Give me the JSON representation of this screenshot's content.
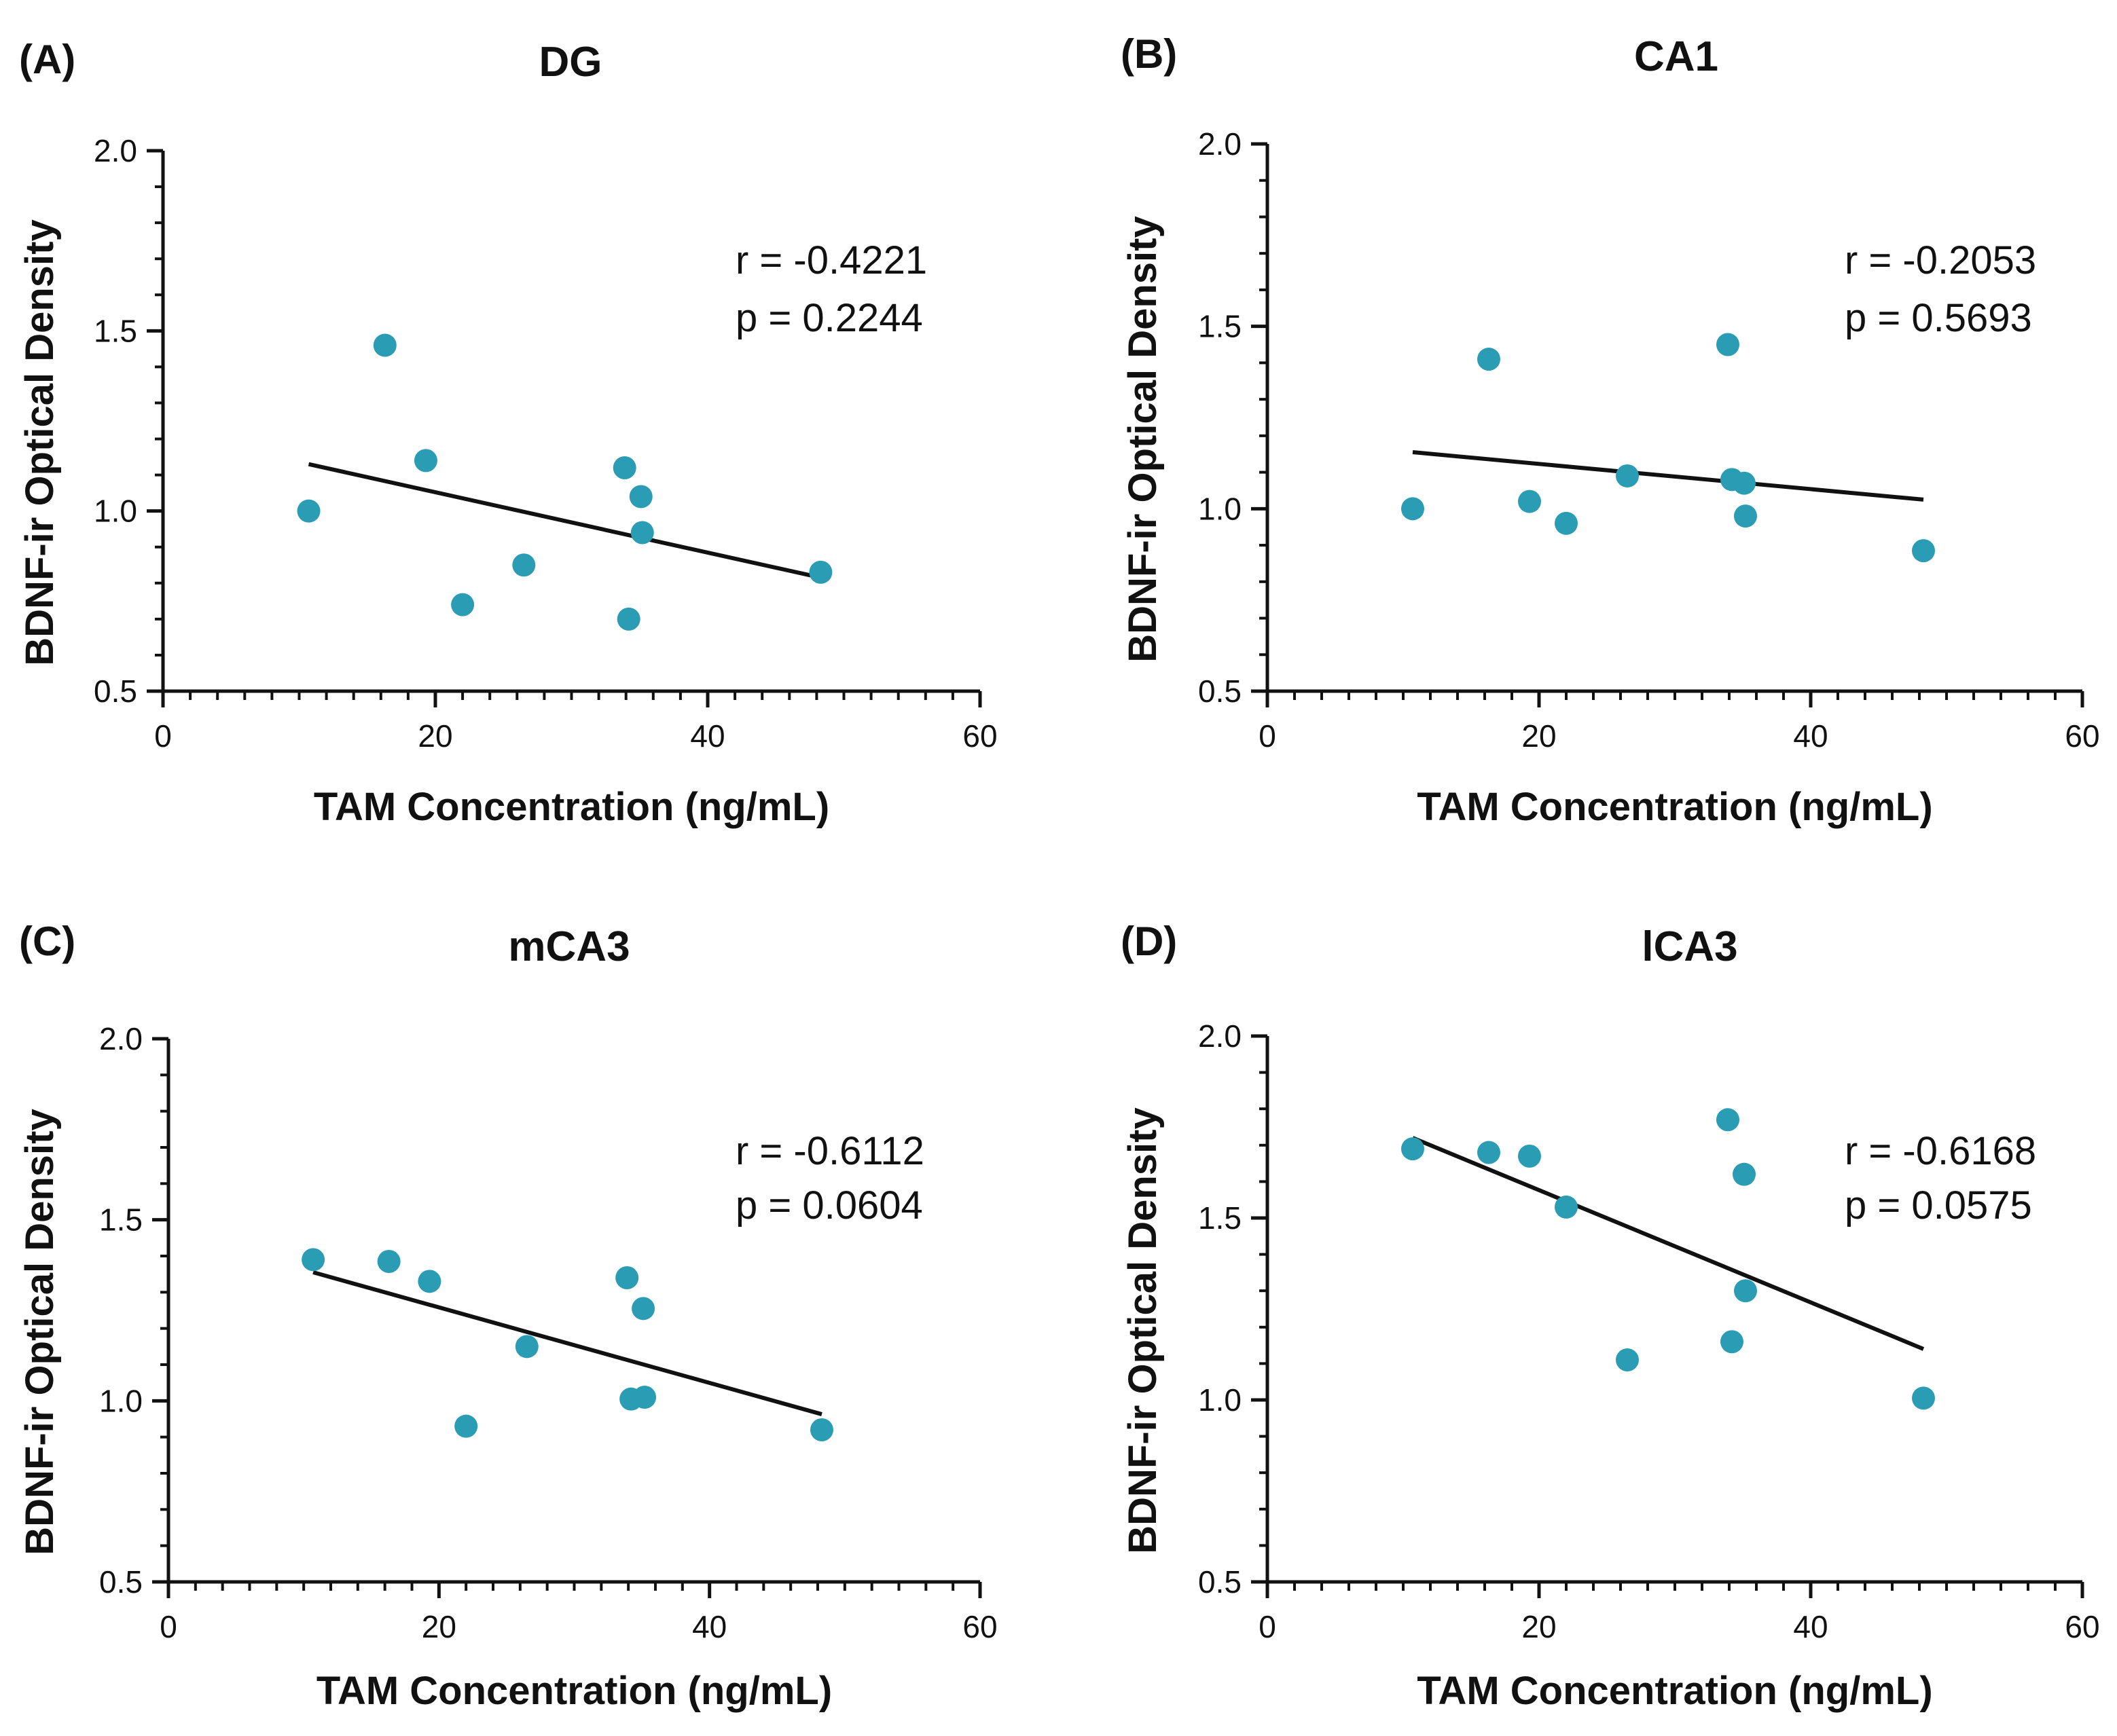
{
  "chart_data": [
    {
      "type": "scatter",
      "panel_label": "(A)",
      "title": "DG",
      "xlabel": "TAM Concentration (ng/mL)",
      "ylabel": "BDNF-ir Optical Density",
      "xlim": [
        0,
        60
      ],
      "ylim": [
        0.5,
        2.0
      ],
      "xticks": [
        "0",
        "20",
        "40",
        "60"
      ],
      "yticks": [
        "0.5",
        "1.0",
        "1.5",
        "2.0"
      ],
      "points": [
        {
          "x": 10.7,
          "y": 1.0
        },
        {
          "x": 16.3,
          "y": 1.46
        },
        {
          "x": 19.3,
          "y": 1.14
        },
        {
          "x": 22.0,
          "y": 0.74
        },
        {
          "x": 26.5,
          "y": 0.85
        },
        {
          "x": 33.9,
          "y": 1.12
        },
        {
          "x": 34.2,
          "y": 0.7
        },
        {
          "x": 35.1,
          "y": 1.04
        },
        {
          "x": 35.2,
          "y": 0.94
        },
        {
          "x": 48.3,
          "y": 0.83
        }
      ],
      "fit_line": {
        "x": [
          10.7,
          48.3
        ],
        "y": [
          1.13,
          0.815
        ]
      },
      "r_text": "r = -0.4221",
      "p_text": "p = 0.2244",
      "marker_color": "#2a9db5"
    },
    {
      "type": "scatter",
      "panel_label": "(B)",
      "title": "CA1",
      "xlabel": "TAM Concentration (ng/mL)",
      "ylabel": "BDNF-ir Optical Density",
      "xlim": [
        0,
        60
      ],
      "ylim": [
        0.5,
        2.0
      ],
      "xticks": [
        "0",
        "20",
        "40",
        "60"
      ],
      "yticks": [
        "0.5",
        "1.0",
        "1.5",
        "2.0"
      ],
      "points": [
        {
          "x": 10.7,
          "y": 1.0
        },
        {
          "x": 16.3,
          "y": 1.41
        },
        {
          "x": 19.3,
          "y": 1.02
        },
        {
          "x": 22.0,
          "y": 0.96
        },
        {
          "x": 26.5,
          "y": 1.09
        },
        {
          "x": 33.9,
          "y": 1.45
        },
        {
          "x": 34.2,
          "y": 1.08
        },
        {
          "x": 35.1,
          "y": 1.07
        },
        {
          "x": 35.2,
          "y": 0.98
        },
        {
          "x": 48.3,
          "y": 0.885
        }
      ],
      "fit_line": {
        "x": [
          10.7,
          48.3
        ],
        "y": [
          1.155,
          1.025
        ]
      },
      "r_text": "r = -0.2053",
      "p_text": "p = 0.5693",
      "marker_color": "#2a9db5"
    },
    {
      "type": "scatter",
      "panel_label": "(C)",
      "title": "mCA3",
      "xlabel": "TAM Concentration (ng/mL)",
      "ylabel": "BDNF-ir Optical Density",
      "xlim": [
        0,
        60
      ],
      "ylim": [
        0.5,
        2.0
      ],
      "xticks": [
        "0",
        "20",
        "40",
        "60"
      ],
      "yticks": [
        "0.5",
        "1.0",
        "1.5",
        "2.0"
      ],
      "points": [
        {
          "x": 10.7,
          "y": 1.39
        },
        {
          "x": 16.3,
          "y": 1.385
        },
        {
          "x": 19.3,
          "y": 1.33
        },
        {
          "x": 22.0,
          "y": 0.93
        },
        {
          "x": 26.5,
          "y": 1.15
        },
        {
          "x": 33.9,
          "y": 1.34
        },
        {
          "x": 34.2,
          "y": 1.005
        },
        {
          "x": 35.1,
          "y": 1.255
        },
        {
          "x": 35.2,
          "y": 1.01
        },
        {
          "x": 48.3,
          "y": 0.92
        }
      ],
      "fit_line": {
        "x": [
          10.7,
          48.3
        ],
        "y": [
          1.355,
          0.963
        ]
      },
      "r_text": "r = -0.6112",
      "p_text": "p = 0.0604",
      "marker_color": "#2a9db5"
    },
    {
      "type": "scatter",
      "panel_label": "(D)",
      "title": "lCA3",
      "xlabel": "TAM Concentration (ng/mL)",
      "ylabel": "BDNF-ir Optical Density",
      "xlim": [
        0,
        60
      ],
      "ylim": [
        0.5,
        2.0
      ],
      "xticks": [
        "0",
        "20",
        "40",
        "60"
      ],
      "yticks": [
        "0.5",
        "1.0",
        "1.5",
        "2.0"
      ],
      "points": [
        {
          "x": 10.7,
          "y": 1.69
        },
        {
          "x": 16.3,
          "y": 1.68
        },
        {
          "x": 19.3,
          "y": 1.67
        },
        {
          "x": 22.0,
          "y": 1.53
        },
        {
          "x": 26.5,
          "y": 1.11
        },
        {
          "x": 33.9,
          "y": 1.77
        },
        {
          "x": 34.2,
          "y": 1.16
        },
        {
          "x": 35.1,
          "y": 1.62
        },
        {
          "x": 35.2,
          "y": 1.3
        },
        {
          "x": 48.3,
          "y": 1.005
        }
      ],
      "fit_line": {
        "x": [
          10.7,
          48.3
        ],
        "y": [
          1.72,
          1.14
        ]
      },
      "r_text": "r = -0.6168",
      "p_text": "p = 0.0575",
      "marker_color": "#2a9db5"
    }
  ]
}
